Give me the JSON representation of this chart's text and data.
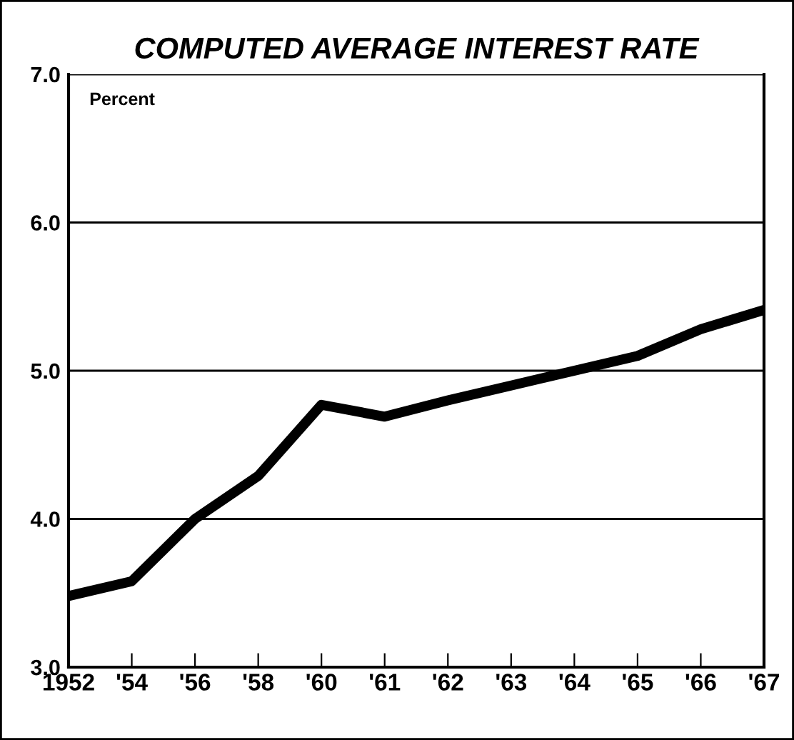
{
  "chart_data": {
    "type": "line",
    "title": "COMPUTED AVERAGE INTEREST RATE",
    "annotations": [
      "Percent"
    ],
    "categories": [
      "1952",
      "'54",
      "'56",
      "'58",
      "'60",
      "'61",
      "'62",
      "'63",
      "'64",
      "'65",
      "'66",
      "'67"
    ],
    "series": [
      {
        "color": "#000000",
        "values": [
          3.48,
          3.58,
          4.0,
          4.29,
          4.77,
          4.69,
          4.8,
          4.9,
          5.0,
          5.1,
          5.28,
          5.41
        ]
      }
    ],
    "ylim": [
      3.0,
      7.0
    ],
    "yticks": [
      {
        "value": 3.0,
        "label": "3.0"
      },
      {
        "value": 4.0,
        "label": "4.0"
      },
      {
        "value": 5.0,
        "label": "5.0"
      },
      {
        "value": 6.0,
        "label": "6.0"
      },
      {
        "value": 7.0,
        "label": "7.0"
      }
    ],
    "grid": "y",
    "marker": "none",
    "line_style": "solid",
    "legend": false
  }
}
